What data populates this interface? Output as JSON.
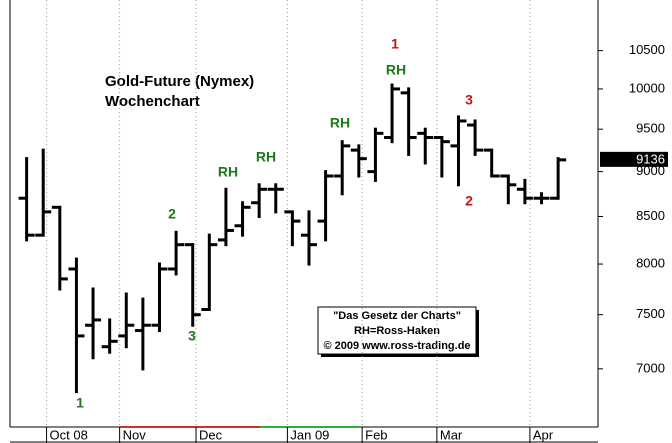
{
  "chart_data": {
    "type": "ohlc",
    "title": "Gold-Future (Nymex)",
    "subtitle": "Wochenchart",
    "log_scale": true,
    "ylim": [
      6500,
      11200
    ],
    "yticks": [
      7000,
      7500,
      8000,
      8500,
      9000,
      9500,
      10000,
      10500
    ],
    "xlim": [
      -1,
      34.4
    ],
    "xticks": [
      {
        "value": 1.2,
        "label": "Oct 08"
      },
      {
        "value": 5.6,
        "label": "Nov"
      },
      {
        "value": 10.2,
        "label": "Dec"
      },
      {
        "value": 15.7,
        "label": "Jan 09"
      },
      {
        "value": 20.2,
        "label": "Feb"
      },
      {
        "value": 24.7,
        "label": "Mar"
      },
      {
        "value": 30.3,
        "label": "Apr"
      }
    ],
    "categories": [
      null,
      null,
      null,
      null,
      null,
      null,
      null,
      null,
      null,
      null,
      null,
      null,
      null,
      null,
      null,
      null,
      null,
      null,
      null,
      null,
      null,
      null,
      null,
      null,
      null,
      null,
      null,
      null,
      null,
      null,
      null,
      null,
      null
    ],
    "color": "#000000",
    "open": [
      8700,
      8300,
      8600,
      7950,
      7400,
      7200,
      7300,
      7350,
      7400,
      7950,
      8200,
      7550,
      8250,
      8400,
      8650,
      8800,
      8550,
      8300,
      8450,
      8950,
      9250,
      9000,
      9400,
      9950,
      9450,
      9400,
      9300,
      9550,
      9250,
      8950,
      8800,
      8700,
      8700
    ],
    "high": [
      9150,
      9250,
      8600,
      8050,
      7750,
      7450,
      7700,
      7650,
      8000,
      8330,
      8200,
      8300,
      8800,
      8650,
      8850,
      8850,
      8550,
      8550,
      9000,
      9350,
      9300,
      9500,
      10050,
      10000,
      9500,
      9400,
      9650,
      9600,
      9250,
      8950,
      8900,
      8750,
      9150
    ],
    "low": [
      8250,
      8300,
      7750,
      6800,
      7100,
      7150,
      7200,
      7000,
      7350,
      7900,
      7400,
      7550,
      8200,
      8300,
      8500,
      8550,
      8200,
      8000,
      8250,
      8750,
      8950,
      8900,
      9350,
      9200,
      9100,
      8950,
      8850,
      9200,
      8950,
      8650,
      8650,
      8650,
      8700
    ],
    "close": [
      8300,
      8550,
      7850,
      7300,
      7450,
      7250,
      7400,
      7400,
      7950,
      8200,
      7500,
      8200,
      8350,
      8600,
      8800,
      8800,
      8450,
      8200,
      8950,
      9300,
      9150,
      9450,
      10000,
      9400,
      9400,
      9350,
      9600,
      9250,
      8950,
      8850,
      8700,
      8700,
      9136
    ],
    "annotations": [
      {
        "text": "1",
        "color": "#1a7a1a"
      },
      {
        "text": "2",
        "color": "#1a7a1a"
      },
      {
        "text": "3",
        "color": "#1a7a1a"
      },
      {
        "text": "RH",
        "color": "#1a7a1a"
      },
      {
        "text": "RH",
        "color": "#1a7a1a"
      },
      {
        "text": "RH",
        "color": "#1a7a1a"
      },
      {
        "text": "RH",
        "color": "#1a7a1a"
      },
      {
        "text": "1",
        "color": "#cc1111"
      },
      {
        "text": "3",
        "color": "#cc1111"
      },
      {
        "text": "2",
        "color": "#cc1111"
      }
    ],
    "note_lines": [
      "\"Das Gesetz der Charts\"",
      "RH=Ross-Haken",
      "© 2009 www.ross-trading.de"
    ]
  }
}
